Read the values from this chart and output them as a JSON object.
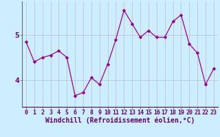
{
  "x": [
    0,
    1,
    2,
    3,
    4,
    5,
    6,
    7,
    8,
    9,
    10,
    11,
    12,
    13,
    14,
    15,
    16,
    17,
    18,
    19,
    20,
    21,
    22,
    23
  ],
  "y": [
    4.85,
    4.4,
    4.5,
    4.55,
    4.65,
    4.5,
    3.65,
    3.72,
    4.05,
    3.9,
    4.35,
    4.9,
    5.55,
    5.25,
    4.95,
    5.1,
    4.95,
    4.95,
    5.3,
    5.45,
    4.8,
    4.6,
    3.9,
    4.25
  ],
  "line_color": "#990099",
  "marker": "D",
  "marker_size": 2.5,
  "bg_color": "#cceeff",
  "grid_color": "#bbbbcc",
  "xlabel": "Windchill (Refroidissement éolien,°C)",
  "xlabel_fontsize": 7,
  "tick_fontsize": 6,
  "ylabel_ticks": [
    4,
    5
  ],
  "ylim": [
    3.4,
    5.75
  ],
  "xlim": [
    -0.5,
    23.5
  ],
  "spine_color": "#666677",
  "text_color": "#660066"
}
